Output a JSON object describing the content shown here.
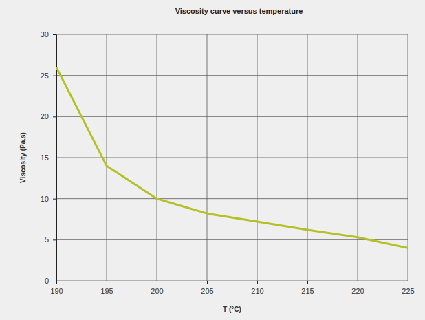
{
  "chart_data": {
    "type": "line",
    "title": "Viscosity curve versus temperature",
    "x_label": "T (°C)",
    "y_label": "Viscosity (Pa.s)",
    "x": [
      190,
      195,
      200,
      205,
      210,
      215,
      220,
      225
    ],
    "values": [
      26,
      14,
      10,
      8.2,
      7.2,
      6.2,
      5.3,
      4.0
    ],
    "color": "#b4c126",
    "xlim": [
      190,
      225
    ],
    "xticks": [
      190,
      195,
      200,
      205,
      210,
      215,
      220,
      225
    ],
    "ylim": [
      0,
      30
    ],
    "yticks": [
      0,
      5,
      10,
      15,
      20,
      25,
      30
    ],
    "grid": true
  }
}
